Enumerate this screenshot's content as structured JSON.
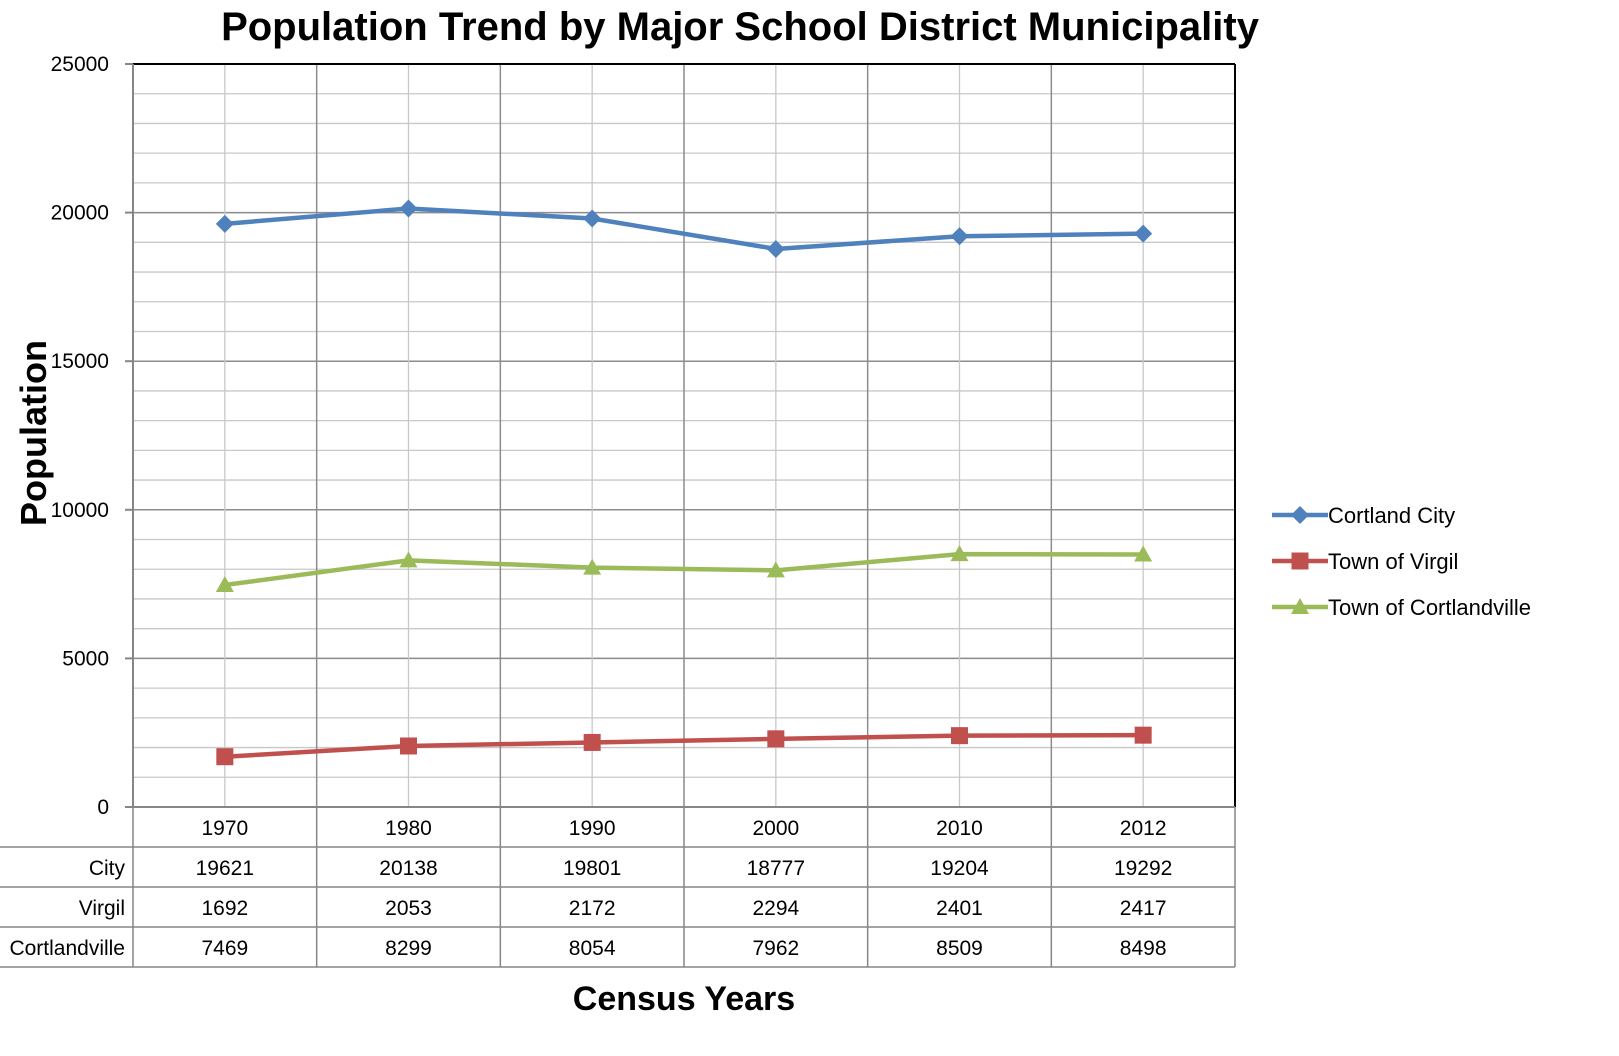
{
  "chart_data": {
    "type": "line",
    "title": "Population Trend by Major School District Municipality",
    "xlabel": "Census Years",
    "ylabel": "Population",
    "categories": [
      "1970",
      "1980",
      "1990",
      "2000",
      "2010",
      "2012"
    ],
    "ylim": [
      0,
      25000
    ],
    "yticks": [
      0,
      5000,
      10000,
      15000,
      20000,
      25000
    ],
    "grid": true,
    "legend_position": "right",
    "data_table": true,
    "series": [
      {
        "name": "Cortland City",
        "table_label": "City",
        "values": [
          19621,
          20138,
          19801,
          18777,
          19204,
          19292
        ],
        "color": "#4F81BD",
        "marker": "diamond"
      },
      {
        "name": "Town of Virgil",
        "table_label": "Virgil",
        "values": [
          1692,
          2053,
          2172,
          2294,
          2401,
          2417
        ],
        "color": "#C0504D",
        "marker": "square"
      },
      {
        "name": "Town of Cortlandville",
        "table_label": "Cortlandville",
        "values": [
          7469,
          8299,
          8054,
          7962,
          8509,
          8498
        ],
        "color": "#9BBB59",
        "marker": "triangle"
      }
    ]
  }
}
